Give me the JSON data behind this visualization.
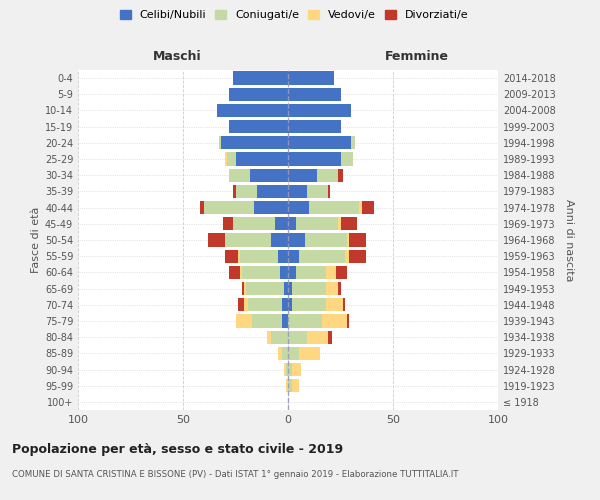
{
  "age_groups": [
    "100+",
    "95-99",
    "90-94",
    "85-89",
    "80-84",
    "75-79",
    "70-74",
    "65-69",
    "60-64",
    "55-59",
    "50-54",
    "45-49",
    "40-44",
    "35-39",
    "30-34",
    "25-29",
    "20-24",
    "15-19",
    "10-14",
    "5-9",
    "0-4"
  ],
  "birth_years": [
    "≤ 1918",
    "1919-1923",
    "1924-1928",
    "1929-1933",
    "1934-1938",
    "1939-1943",
    "1944-1948",
    "1949-1953",
    "1954-1958",
    "1959-1963",
    "1964-1968",
    "1969-1973",
    "1974-1978",
    "1979-1983",
    "1984-1988",
    "1989-1993",
    "1994-1998",
    "1999-2003",
    "2004-2008",
    "2009-2013",
    "2014-2018"
  ],
  "males": {
    "celibi": [
      0,
      0,
      0,
      0,
      0,
      3,
      3,
      2,
      4,
      5,
      8,
      6,
      16,
      15,
      18,
      25,
      32,
      28,
      34,
      28,
      26
    ],
    "coniugati": [
      0,
      0,
      1,
      3,
      8,
      14,
      16,
      18,
      18,
      18,
      22,
      20,
      24,
      10,
      10,
      4,
      1,
      0,
      0,
      0,
      0
    ],
    "vedovi": [
      0,
      1,
      1,
      2,
      2,
      8,
      2,
      1,
      1,
      1,
      0,
      0,
      0,
      0,
      0,
      1,
      0,
      0,
      0,
      0,
      0
    ],
    "divorziati": [
      0,
      0,
      0,
      0,
      0,
      0,
      3,
      1,
      5,
      6,
      8,
      5,
      2,
      1,
      0,
      0,
      0,
      0,
      0,
      0,
      0
    ]
  },
  "females": {
    "nubili": [
      0,
      0,
      0,
      0,
      0,
      0,
      2,
      2,
      4,
      5,
      8,
      4,
      10,
      9,
      14,
      25,
      30,
      25,
      30,
      25,
      22
    ],
    "coniugate": [
      0,
      2,
      2,
      5,
      9,
      16,
      16,
      16,
      14,
      22,
      20,
      20,
      24,
      10,
      10,
      6,
      2,
      0,
      0,
      0,
      0
    ],
    "vedove": [
      0,
      3,
      4,
      10,
      10,
      12,
      8,
      6,
      5,
      2,
      1,
      1,
      1,
      0,
      0,
      0,
      0,
      0,
      0,
      0,
      0
    ],
    "divorziate": [
      0,
      0,
      0,
      0,
      2,
      1,
      1,
      1,
      5,
      8,
      8,
      8,
      6,
      1,
      2,
      0,
      0,
      0,
      0,
      0,
      0
    ]
  },
  "color_celibi": "#4472c4",
  "color_coniugati": "#c5d9a4",
  "color_vedovi": "#ffd780",
  "color_divorziati": "#c0392b",
  "title": "Popolazione per età, sesso e stato civile - 2019",
  "subtitle": "COMUNE DI SANTA CRISTINA E BISSONE (PV) - Dati ISTAT 1° gennaio 2019 - Elaborazione TUTTITALIA.IT",
  "xlabel_left": "Maschi",
  "xlabel_right": "Femmine",
  "ylabel_left": "Fasce di età",
  "ylabel_right": "Anni di nascita",
  "xlim": 100,
  "bg_color": "#f0f0f0",
  "plot_bg": "#ffffff"
}
